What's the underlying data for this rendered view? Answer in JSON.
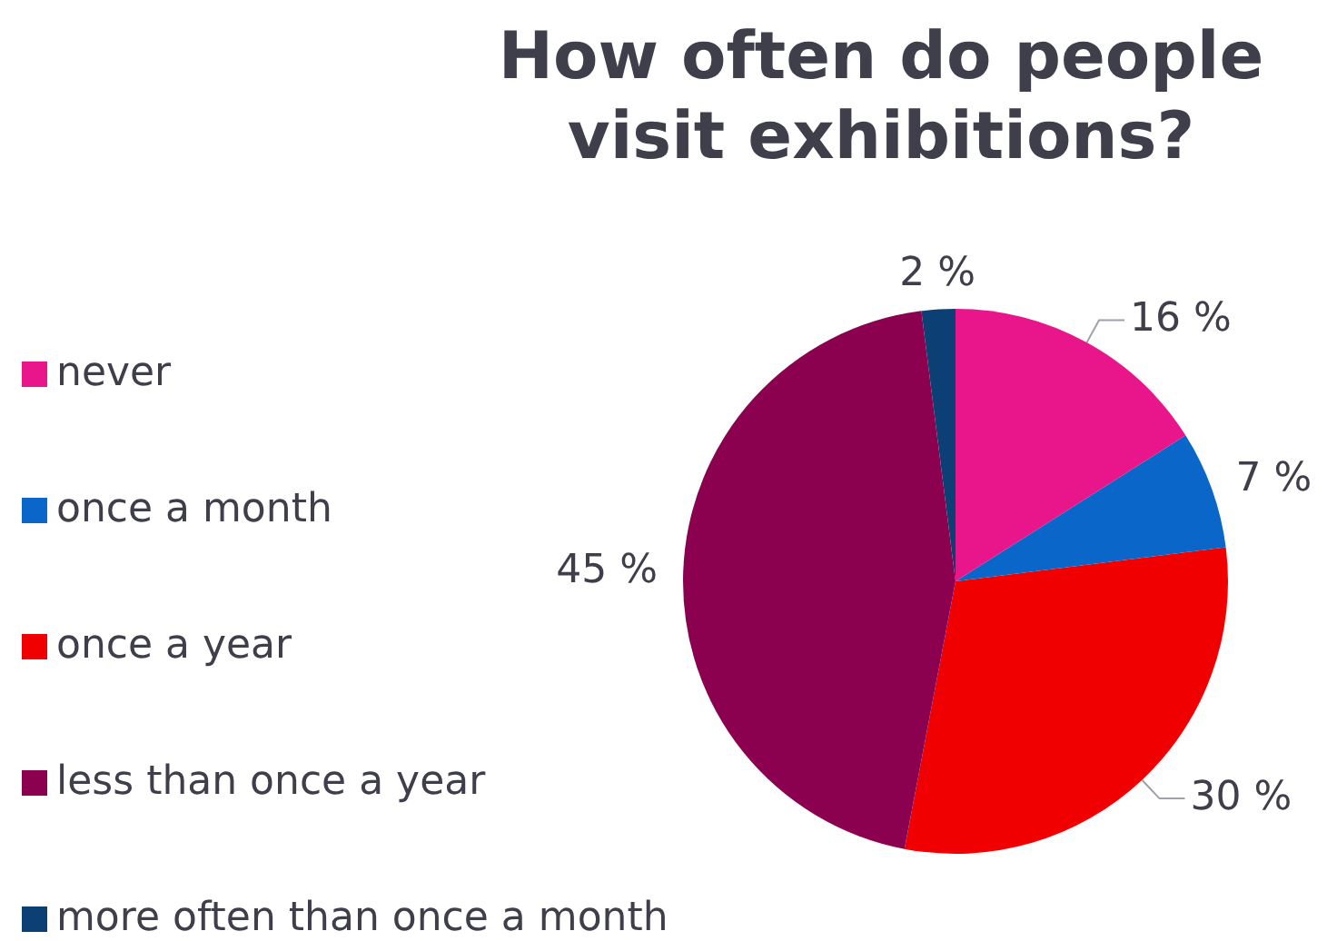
{
  "chart_data": {
    "type": "pie",
    "title": "How often do people visit exhibitions?",
    "categories": [
      "never",
      "once a month",
      "once a year",
      "less than once a year",
      "more often than once a month"
    ],
    "values": [
      16,
      7,
      30,
      45,
      2
    ],
    "value_labels": [
      "16 %",
      "7 %",
      "30 %",
      "45 %",
      "2 %"
    ],
    "colors": [
      "#e8168a",
      "#0a66c8",
      "#f00000",
      "#8c0050",
      "#0c3f74"
    ],
    "legend": "left"
  }
}
